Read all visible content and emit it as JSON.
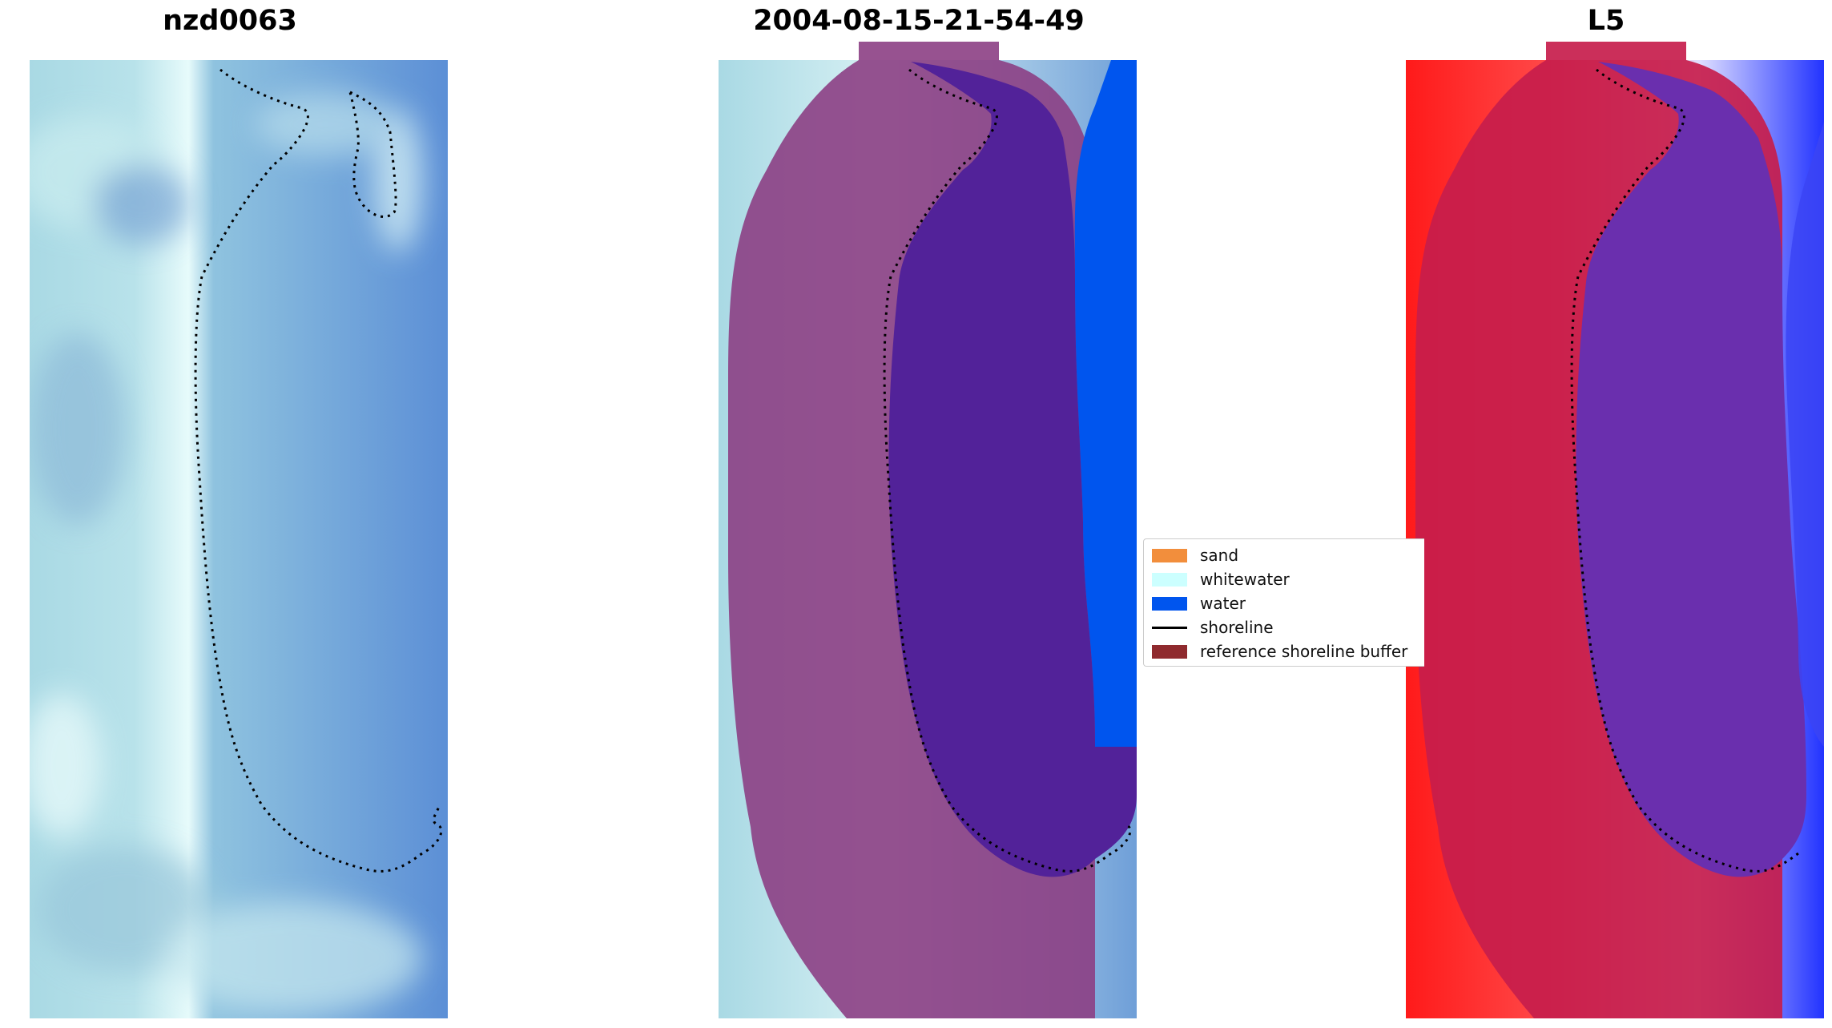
{
  "panels": [
    {
      "title": "nzd0063"
    },
    {
      "title": "2004-08-15-21-54-49"
    },
    {
      "title": "L5"
    }
  ],
  "legend": {
    "items": [
      {
        "label": "sand",
        "color": "#f28e3c",
        "kind": "patch"
      },
      {
        "label": "whitewater",
        "color": "#ccffff",
        "kind": "patch"
      },
      {
        "label": "water",
        "color": "#0055ee",
        "kind": "patch"
      },
      {
        "label": "shoreline",
        "color": "#000000",
        "kind": "line"
      },
      {
        "label": "reference shoreline buffer",
        "color": "#8f2a2e",
        "kind": "patch"
      }
    ]
  },
  "colors": {
    "sea_blue": "#5c8fd6",
    "beach_light": "#d8f1f4",
    "buffer_overlay": "#8c3f84",
    "water_class": "#0055ee",
    "lagoon_purple": "#522299",
    "index_red": "#ff1a1a",
    "index_buffer": "#c71d4c",
    "index_lagoon": "#6a2fae"
  }
}
